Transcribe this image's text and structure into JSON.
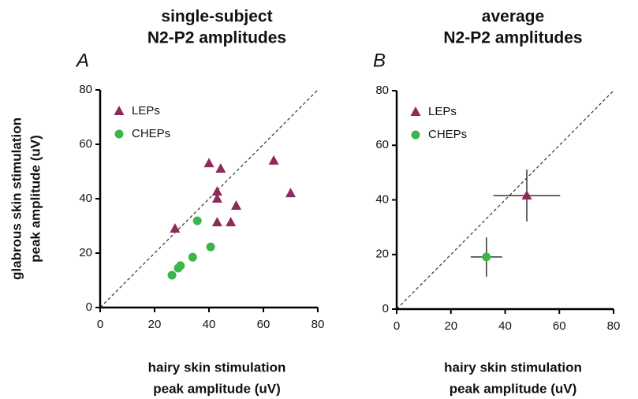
{
  "chart_data": [
    {
      "type": "scatter",
      "panel": "A",
      "title": [
        "single-subject",
        "N2-P2 amplitudes"
      ],
      "xlabel": [
        "hairy skin stimulation",
        "peak amplitude (uV)"
      ],
      "ylabel": [
        "glabrous skin stimulation",
        "peak amplitude (uV)"
      ],
      "xlim": [
        0,
        80
      ],
      "ylim": [
        0,
        80
      ],
      "xticks": [
        0,
        20,
        40,
        60,
        80
      ],
      "yticks": [
        0,
        20,
        40,
        60,
        80
      ],
      "legend": "top-left",
      "series": [
        {
          "name": "LEPs",
          "marker": "triangle",
          "color": "#8e2a5c",
          "x": [
            27.5,
            40,
            44.3,
            43,
            43,
            43,
            48,
            50,
            63.8,
            70
          ],
          "values": [
            29,
            53,
            51,
            42.6,
            40,
            31.3,
            31.3,
            37.4,
            54,
            42
          ]
        },
        {
          "name": "CHEPs",
          "marker": "circle",
          "color": "#3cb54a",
          "x": [
            35.7,
            40.6,
            34,
            29.5,
            28.7,
            26.4
          ],
          "values": [
            31.9,
            22.3,
            18.5,
            15.4,
            14.5,
            11.9
          ]
        }
      ]
    },
    {
      "type": "scatter",
      "panel": "B",
      "title": [
        "average",
        "N2-P2 amplitudes"
      ],
      "xlabel": [
        "hairy skin stimulation",
        "peak amplitude (uV)"
      ],
      "xlim": [
        0,
        80
      ],
      "ylim": [
        0,
        80
      ],
      "xticks": [
        0,
        20,
        40,
        60,
        80
      ],
      "yticks": [
        0,
        20,
        40,
        60,
        80
      ],
      "legend": "top-left",
      "series": [
        {
          "name": "LEPs",
          "marker": "triangle",
          "color": "#8e2a5c",
          "x": [
            48
          ],
          "values": [
            41.6
          ],
          "x_err": [
            12.3
          ],
          "y_err": [
            9.5
          ]
        },
        {
          "name": "CHEPs",
          "marker": "circle",
          "color": "#3cb54a",
          "x": [
            33.1
          ],
          "values": [
            19.1
          ],
          "x_err": [
            5.8
          ],
          "y_err": [
            7.2
          ]
        }
      ]
    }
  ]
}
